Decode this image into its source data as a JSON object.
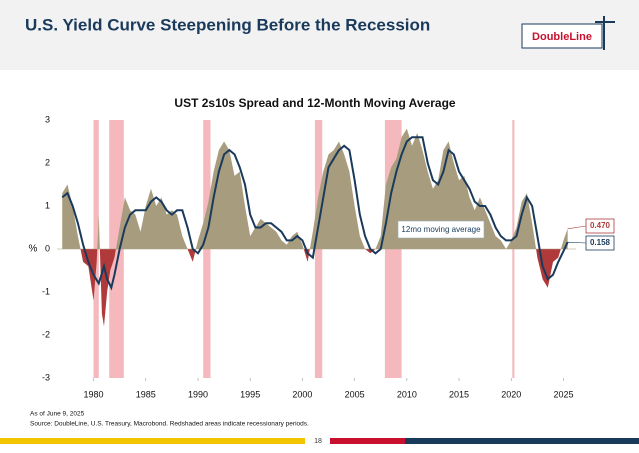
{
  "header": {
    "title": "U.S. Yield Curve Steepening Before the Recession",
    "logo": "DoubleLine"
  },
  "footer": {
    "as_of": "As of June 9, 2025",
    "source": "Source: DoubleLine, U.S. Treasury, Macrobond. Redshaded areas indicate recessionary periods.",
    "page_number": "18"
  },
  "chart_data": {
    "type": "area_line",
    "title": "UST 2s10s Spread and 12-Month Moving Average",
    "y_label": "%",
    "annotation": "12mo moving average",
    "xlim": [
      1976.5,
      2026.2
    ],
    "xticks": [
      1980,
      1985,
      1990,
      1995,
      2000,
      2005,
      2010,
      2015,
      2020,
      2025
    ],
    "ylim": [
      -3,
      3
    ],
    "yticks": [
      -3,
      -2,
      -1,
      0,
      1,
      2,
      3
    ],
    "recessions": [
      [
        1980.0,
        1980.5
      ],
      [
        1981.5,
        1982.9
      ],
      [
        1990.5,
        1991.2
      ],
      [
        2001.2,
        2001.9
      ],
      [
        2007.9,
        2009.5
      ],
      [
        2020.1,
        2020.3
      ]
    ],
    "recession_color": "#f4b8bd",
    "series": [
      {
        "name": "UST 2s10s Spread",
        "color": "#a89c7e",
        "negative_color": "#b03a3a",
        "last_value_label": "0.470",
        "x": [
          1977.0,
          1977.5,
          1978.0,
          1978.5,
          1979.0,
          1979.5,
          1980.0,
          1980.3,
          1980.5,
          1980.8,
          1981.0,
          1981.3,
          1981.6,
          1982.0,
          1982.5,
          1983.0,
          1983.5,
          1984.0,
          1984.5,
          1985.0,
          1985.5,
          1986.0,
          1986.5,
          1987.0,
          1987.5,
          1988.0,
          1988.5,
          1989.0,
          1989.5,
          1990.0,
          1990.5,
          1991.0,
          1991.5,
          1992.0,
          1992.5,
          1993.0,
          1993.5,
          1994.0,
          1994.5,
          1995.0,
          1995.5,
          1996.0,
          1996.5,
          1997.0,
          1997.5,
          1998.0,
          1998.5,
          1999.0,
          1999.5,
          2000.0,
          2000.5,
          2001.0,
          2001.5,
          2002.0,
          2002.5,
          2003.0,
          2003.5,
          2004.0,
          2004.5,
          2005.0,
          2005.5,
          2006.0,
          2006.5,
          2007.0,
          2007.5,
          2008.0,
          2008.5,
          2009.0,
          2009.5,
          2010.0,
          2010.5,
          2011.0,
          2011.5,
          2012.0,
          2012.5,
          2013.0,
          2013.5,
          2014.0,
          2014.5,
          2015.0,
          2015.5,
          2016.0,
          2016.5,
          2017.0,
          2017.5,
          2018.0,
          2018.5,
          2019.0,
          2019.5,
          2020.0,
          2020.5,
          2021.0,
          2021.5,
          2022.0,
          2022.5,
          2023.0,
          2023.5,
          2024.0,
          2024.5,
          2025.0,
          2025.4
        ],
        "values": [
          1.3,
          1.5,
          1.0,
          0.3,
          -0.3,
          -0.4,
          -1.2,
          -0.3,
          0.8,
          -1.5,
          -1.8,
          -1.0,
          -0.5,
          -0.2,
          0.5,
          1.2,
          0.9,
          0.8,
          0.4,
          1.0,
          1.4,
          1.0,
          1.2,
          0.8,
          0.9,
          0.8,
          0.3,
          0.0,
          -0.3,
          0.2,
          0.6,
          1.1,
          1.8,
          2.3,
          2.5,
          2.3,
          1.7,
          1.8,
          1.0,
          0.3,
          0.5,
          0.7,
          0.6,
          0.5,
          0.4,
          0.2,
          0.1,
          0.3,
          0.4,
          0.1,
          -0.3,
          0.4,
          1.2,
          1.8,
          2.2,
          2.3,
          2.5,
          2.2,
          1.8,
          1.0,
          0.3,
          0.0,
          -0.1,
          0.0,
          0.3,
          1.5,
          1.9,
          2.1,
          2.6,
          2.8,
          2.4,
          2.7,
          2.3,
          1.8,
          1.4,
          1.6,
          2.3,
          2.5,
          2.0,
          1.6,
          1.7,
          1.2,
          0.9,
          1.2,
          0.9,
          0.6,
          0.3,
          0.2,
          0.0,
          0.2,
          0.5,
          1.1,
          1.3,
          0.6,
          -0.2,
          -0.7,
          -0.9,
          -0.3,
          -0.2,
          0.2,
          0.47
        ]
      },
      {
        "name": "12-Month Moving Average",
        "color": "#1a3a5c",
        "last_value_label": "0.158",
        "x": [
          1977.0,
          1977.5,
          1978.0,
          1978.5,
          1979.0,
          1979.5,
          1980.0,
          1980.5,
          1981.0,
          1981.3,
          1981.7,
          1982.0,
          1982.5,
          1983.0,
          1983.5,
          1984.0,
          1984.5,
          1985.0,
          1985.5,
          1986.0,
          1986.5,
          1987.0,
          1987.5,
          1988.0,
          1988.5,
          1989.0,
          1989.5,
          1990.0,
          1990.5,
          1991.0,
          1991.5,
          1992.0,
          1992.5,
          1993.0,
          1993.5,
          1994.0,
          1994.5,
          1995.0,
          1995.5,
          1996.0,
          1996.5,
          1997.0,
          1997.5,
          1998.0,
          1998.5,
          1999.0,
          1999.5,
          2000.0,
          2000.5,
          2001.0,
          2001.5,
          2002.0,
          2002.5,
          2003.0,
          2003.5,
          2004.0,
          2004.5,
          2005.0,
          2005.5,
          2006.0,
          2006.5,
          2007.0,
          2007.5,
          2008.0,
          2008.5,
          2009.0,
          2009.5,
          2010.0,
          2010.5,
          2011.0,
          2011.5,
          2012.0,
          2012.5,
          2013.0,
          2013.5,
          2014.0,
          2014.5,
          2015.0,
          2015.5,
          2016.0,
          2016.5,
          2017.0,
          2017.5,
          2018.0,
          2018.5,
          2019.0,
          2019.5,
          2020.0,
          2020.5,
          2021.0,
          2021.5,
          2022.0,
          2022.5,
          2023.0,
          2023.5,
          2024.0,
          2024.5,
          2025.0,
          2025.4
        ],
        "values": [
          1.2,
          1.3,
          1.0,
          0.6,
          0.1,
          -0.3,
          -0.6,
          -0.8,
          -0.4,
          -0.7,
          -0.9,
          -0.6,
          0.0,
          0.5,
          0.8,
          0.9,
          0.9,
          0.9,
          1.1,
          1.2,
          1.1,
          0.9,
          0.8,
          0.9,
          0.9,
          0.5,
          0.0,
          -0.1,
          0.1,
          0.5,
          1.2,
          1.8,
          2.2,
          2.3,
          2.2,
          1.9,
          1.5,
          0.8,
          0.5,
          0.5,
          0.6,
          0.6,
          0.5,
          0.4,
          0.2,
          0.2,
          0.3,
          0.2,
          -0.1,
          -0.2,
          0.5,
          1.2,
          1.9,
          2.1,
          2.3,
          2.4,
          2.3,
          1.6,
          0.8,
          0.3,
          0.0,
          -0.1,
          0.0,
          0.6,
          1.3,
          1.8,
          2.2,
          2.5,
          2.6,
          2.6,
          2.6,
          2.0,
          1.6,
          1.5,
          1.8,
          2.3,
          2.2,
          1.8,
          1.6,
          1.4,
          1.1,
          1.0,
          1.0,
          0.8,
          0.5,
          0.3,
          0.2,
          0.2,
          0.3,
          0.8,
          1.2,
          1.0,
          0.3,
          -0.4,
          -0.7,
          -0.6,
          -0.3,
          -0.05,
          0.158
        ]
      }
    ]
  }
}
